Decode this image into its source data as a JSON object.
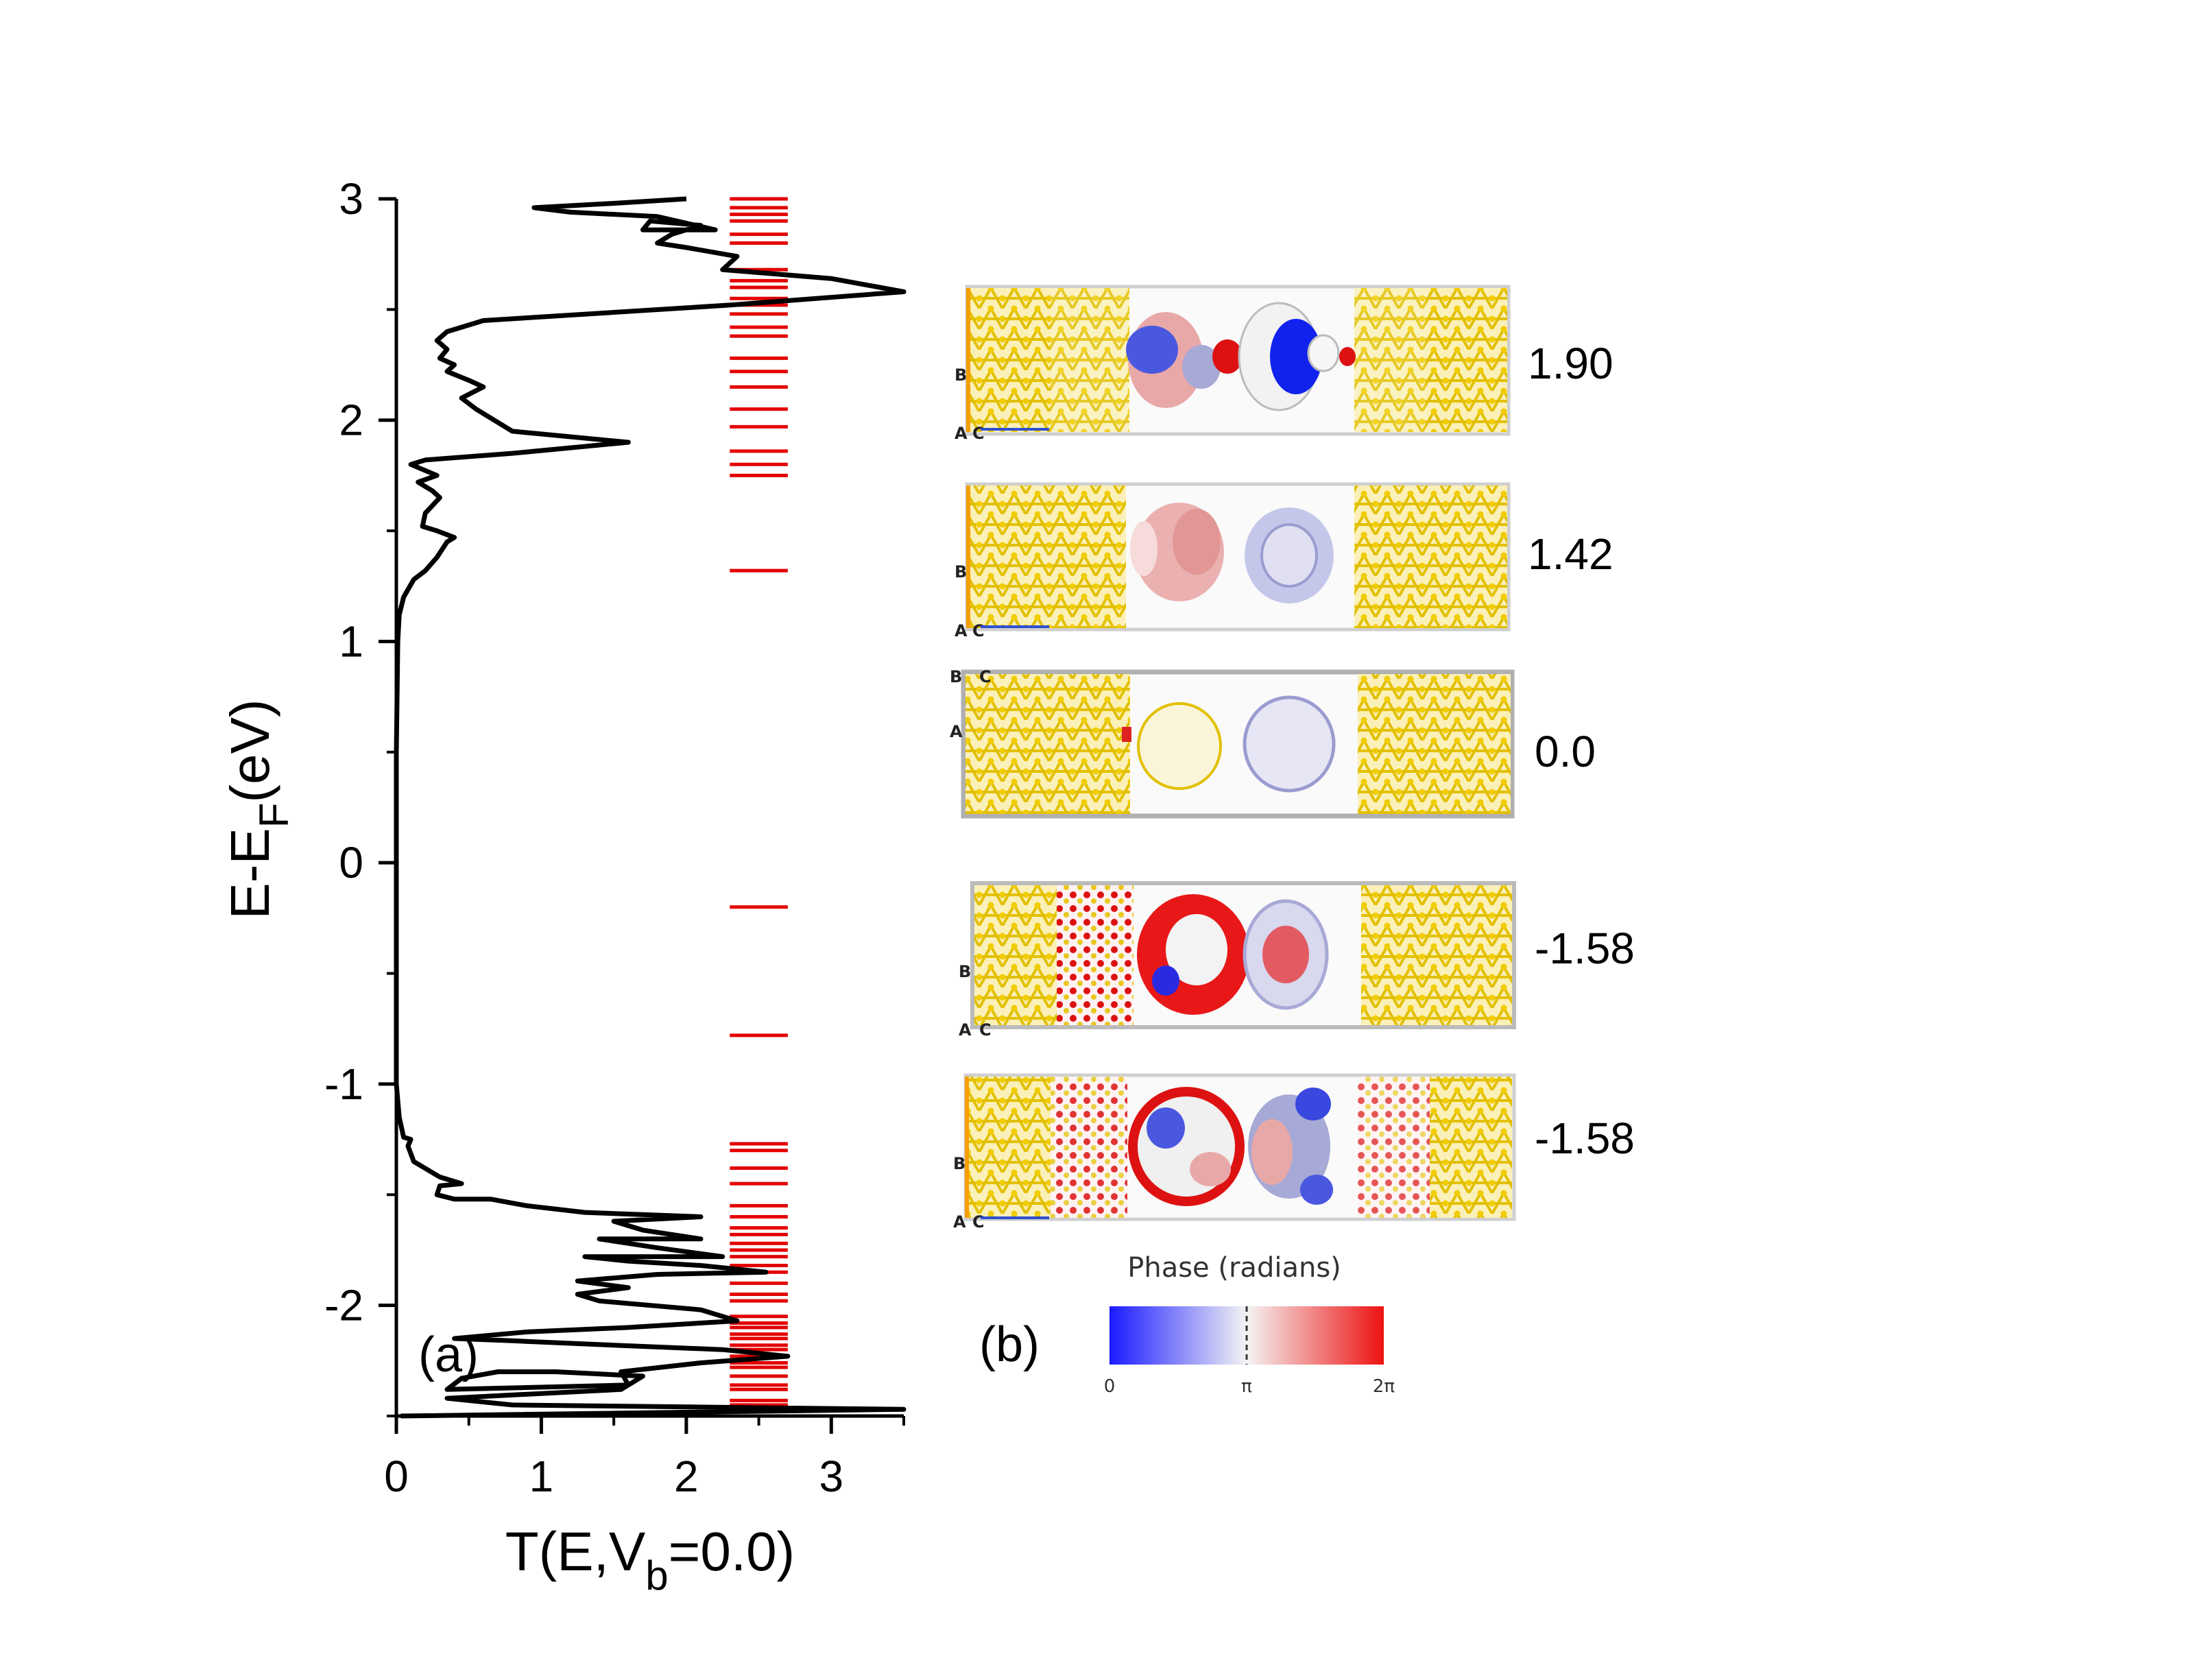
{
  "colors": {
    "curve": "#000000",
    "eigen": "#e30000",
    "gold": "#e8c81e",
    "blue": "#2233dd",
    "red": "#dd1111",
    "pink": "#e8a8a8",
    "lavender": "#a7a9d6"
  },
  "chart_data": {
    "type": "line",
    "panel_label": "(a)",
    "xlabel": "T(E,V",
    "xlabel_sub": "b",
    "xlabel_tail": "=0.0)",
    "ylabel": "E-E",
    "ylabel_sub": "F",
    "ylabel_tail": "(eV)",
    "xlim": [
      0,
      3.5
    ],
    "ylim": [
      -2.5,
      3
    ],
    "xticks": [
      0,
      1,
      2,
      3
    ],
    "yticks": [
      3,
      2,
      1,
      0,
      -1,
      -2
    ],
    "xtick_labels": [
      "0",
      "1",
      "2",
      "3"
    ],
    "ytick_labels": [
      "3",
      "2",
      "1",
      "0",
      "-1",
      "-2"
    ],
    "series": [
      {
        "name": "transmission",
        "points": [
          [
            0.03,
            -2.5
          ],
          [
            3.5,
            -2.47
          ],
          [
            0.8,
            -2.45
          ],
          [
            0.35,
            -2.42
          ],
          [
            1.55,
            -2.38
          ],
          [
            1.7,
            -2.32
          ],
          [
            1.1,
            -2.3
          ],
          [
            0.7,
            -2.3
          ],
          [
            0.45,
            -2.33
          ],
          [
            0.35,
            -2.38
          ],
          [
            1.6,
            -2.36
          ],
          [
            1.55,
            -2.3
          ],
          [
            2.1,
            -2.26
          ],
          [
            2.7,
            -2.23
          ],
          [
            2.25,
            -2.2
          ],
          [
            1.5,
            -2.18
          ],
          [
            0.8,
            -2.16
          ],
          [
            0.4,
            -2.15
          ],
          [
            0.9,
            -2.12
          ],
          [
            1.6,
            -2.1
          ],
          [
            2.35,
            -2.07
          ],
          [
            2.1,
            -2.02
          ],
          [
            1.4,
            -1.98
          ],
          [
            1.25,
            -1.95
          ],
          [
            1.6,
            -1.92
          ],
          [
            1.25,
            -1.89
          ],
          [
            1.8,
            -1.86
          ],
          [
            2.55,
            -1.85
          ],
          [
            2.1,
            -1.82
          ],
          [
            1.6,
            -1.8
          ],
          [
            1.3,
            -1.78
          ],
          [
            2.25,
            -1.78
          ],
          [
            1.8,
            -1.74
          ],
          [
            1.4,
            -1.7
          ],
          [
            2.1,
            -1.7
          ],
          [
            1.7,
            -1.66
          ],
          [
            1.5,
            -1.62
          ],
          [
            2.1,
            -1.6
          ],
          [
            1.3,
            -1.58
          ],
          [
            0.9,
            -1.55
          ],
          [
            0.65,
            -1.52
          ],
          [
            0.4,
            -1.52
          ],
          [
            0.28,
            -1.5
          ],
          [
            0.3,
            -1.46
          ],
          [
            0.45,
            -1.45
          ],
          [
            0.3,
            -1.42
          ],
          [
            0.12,
            -1.35
          ],
          [
            0.08,
            -1.28
          ],
          [
            0.1,
            -1.25
          ],
          [
            0.05,
            -1.24
          ],
          [
            0.02,
            -1.15
          ],
          [
            0.0,
            -1.0
          ],
          [
            0.0,
            -0.5
          ],
          [
            0.0,
            0.0
          ],
          [
            0.0,
            0.5
          ],
          [
            0.01,
            1.0
          ],
          [
            0.02,
            1.12
          ],
          [
            0.05,
            1.2
          ],
          [
            0.12,
            1.28
          ],
          [
            0.2,
            1.32
          ],
          [
            0.28,
            1.38
          ],
          [
            0.35,
            1.45
          ],
          [
            0.4,
            1.47
          ],
          [
            0.28,
            1.5
          ],
          [
            0.18,
            1.52
          ],
          [
            0.2,
            1.58
          ],
          [
            0.3,
            1.65
          ],
          [
            0.25,
            1.68
          ],
          [
            0.15,
            1.72
          ],
          [
            0.28,
            1.75
          ],
          [
            0.1,
            1.8
          ],
          [
            0.2,
            1.82
          ],
          [
            0.8,
            1.85
          ],
          [
            1.6,
            1.9
          ],
          [
            0.8,
            1.95
          ],
          [
            0.55,
            2.05
          ],
          [
            0.45,
            2.1
          ],
          [
            0.6,
            2.15
          ],
          [
            0.5,
            2.18
          ],
          [
            0.35,
            2.22
          ],
          [
            0.4,
            2.25
          ],
          [
            0.3,
            2.28
          ],
          [
            0.35,
            2.32
          ],
          [
            0.28,
            2.36
          ],
          [
            0.35,
            2.4
          ],
          [
            0.6,
            2.45
          ],
          [
            2.3,
            2.52
          ],
          [
            3.5,
            2.58
          ],
          [
            3.0,
            2.64
          ],
          [
            2.25,
            2.68
          ],
          [
            2.35,
            2.74
          ],
          [
            2.0,
            2.78
          ],
          [
            1.8,
            2.8
          ],
          [
            1.9,
            2.84
          ],
          [
            2.1,
            2.88
          ],
          [
            1.75,
            2.9
          ],
          [
            1.7,
            2.86
          ],
          [
            2.2,
            2.86
          ],
          [
            1.8,
            2.92
          ],
          [
            1.2,
            2.94
          ],
          [
            0.95,
            2.96
          ],
          [
            1.5,
            2.98
          ],
          [
            2.0,
            3.0
          ]
        ]
      },
      {
        "name": "eigenstates",
        "x_range": [
          2.3,
          2.7
        ],
        "levels": [
          -2.45,
          -2.43,
          -2.38,
          -2.36,
          -2.32,
          -2.28,
          -2.26,
          -2.23,
          -2.2,
          -2.18,
          -2.15,
          -2.13,
          -2.1,
          -2.08,
          -2.05,
          -1.98,
          -1.95,
          -1.9,
          -1.85,
          -1.82,
          -1.78,
          -1.75,
          -1.72,
          -1.68,
          -1.65,
          -1.6,
          -1.55,
          -1.45,
          -1.38,
          -1.3,
          -1.27,
          -0.78,
          -0.2,
          1.32,
          1.75,
          1.8,
          1.86,
          1.97,
          2.05,
          2.15,
          2.22,
          2.28,
          2.38,
          2.42,
          2.48,
          2.52,
          2.55,
          2.6,
          2.63,
          2.68,
          2.8,
          2.84,
          2.9,
          2.93,
          2.96,
          3.0
        ]
      }
    ]
  },
  "panel_b": {
    "label": "(b)",
    "energies": [
      "1.90",
      "1.42",
      "0.0",
      "-1.58",
      "-1.58"
    ],
    "axis_letters": {
      "a": "A",
      "b": "B",
      "c": "C"
    },
    "colorbar": {
      "title": "Phase (radians)",
      "tick_labels": [
        "0",
        "π",
        "2π"
      ]
    }
  }
}
